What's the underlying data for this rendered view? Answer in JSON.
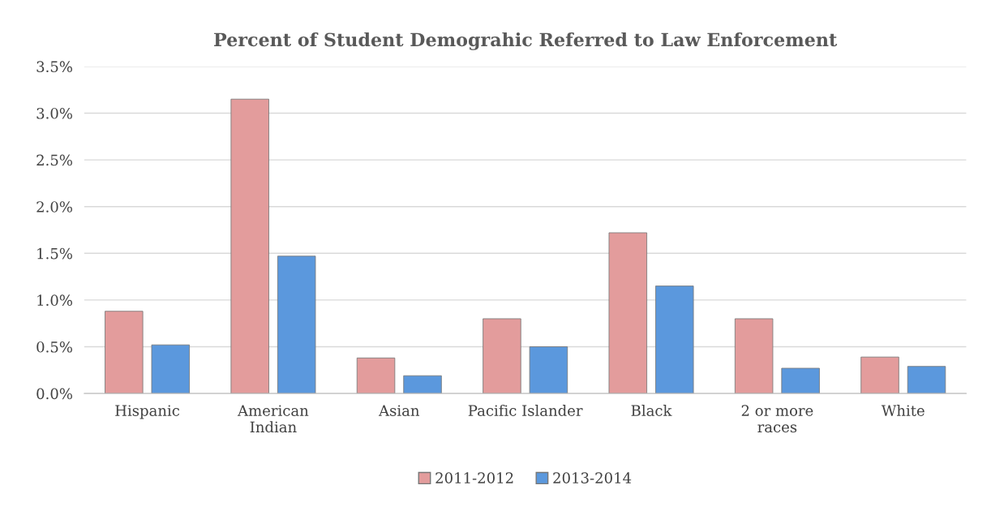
{
  "chart_data": {
    "type": "bar",
    "title": "Percent of Student Demograhic Referred to Law Enforcement",
    "categories": [
      "Hispanic",
      "American\nIndian",
      "Asian",
      "Pacific Islander",
      "Black",
      "2 or more\nraces",
      "White"
    ],
    "series": [
      {
        "name": "2011-2012",
        "color": "#e39c9c",
        "values": [
          0.88,
          3.15,
          0.38,
          0.8,
          1.72,
          0.8,
          0.39
        ]
      },
      {
        "name": "2013-2014",
        "color": "#5b98dd",
        "values": [
          0.52,
          1.47,
          0.19,
          0.5,
          1.15,
          0.27,
          0.29
        ]
      }
    ],
    "ylim": [
      0,
      3.5
    ],
    "yticks": [
      {
        "value": 0,
        "label": "0.0%"
      },
      {
        "value": 0.5,
        "label": "0.5%"
      },
      {
        "value": 1,
        "label": "1.0%"
      },
      {
        "value": 1.5,
        "label": "1.5%"
      },
      {
        "value": 2,
        "label": "2.0%"
      },
      {
        "value": 2.5,
        "label": "2.5%"
      },
      {
        "value": 3,
        "label": "3.0%"
      },
      {
        "value": 3.5,
        "label": "3.5%"
      }
    ],
    "grid": "y",
    "legend": "bottom"
  }
}
